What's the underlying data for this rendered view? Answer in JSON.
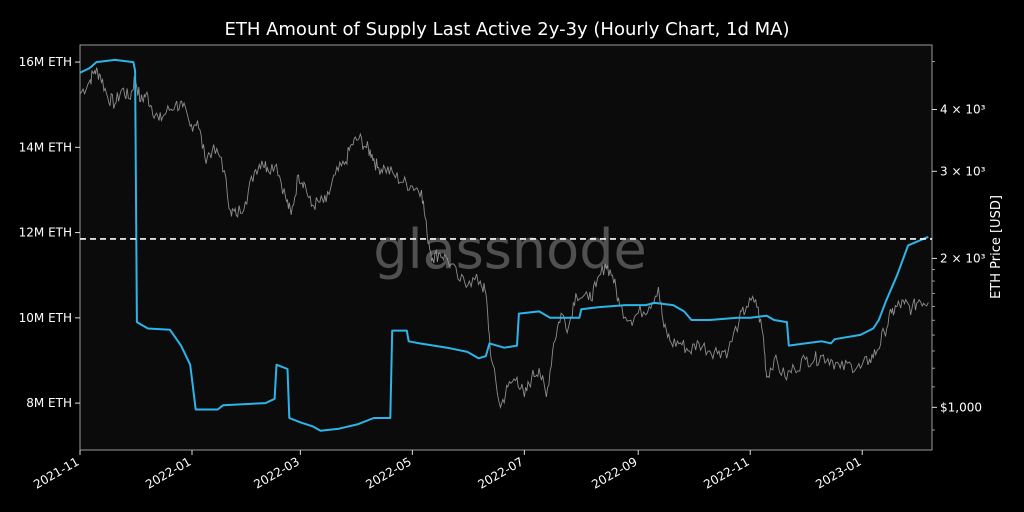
{
  "chart_data": {
    "type": "line",
    "title": "ETH Amount of Supply Last Active 2y-3y (Hourly Chart, 1d MA)",
    "watermark": "glassnode",
    "y2label": "ETH Price [USD]",
    "x_ticks": [
      "2021-11",
      "2022-01",
      "2022-03",
      "2022-05",
      "2022-07",
      "2022-09",
      "2022-11",
      "2023-01"
    ],
    "y_ticks": [
      "8M ETH",
      "10M ETH",
      "12M ETH",
      "14M ETH",
      "16M ETH"
    ],
    "y2_ticks": [
      "$1,000",
      "2 × 10³",
      "3 × 10³",
      "4 × 10³"
    ],
    "xlim": [
      "2021-11-01",
      "2023-02-08"
    ],
    "ylim": [
      6900000,
      16400000
    ],
    "y2lim": [
      820,
      5400
    ],
    "y2_scale": "log",
    "grid": false,
    "colors": {
      "background": "#000000",
      "supply": "#2db4e8",
      "price": "#9a9a9a",
      "reference": "#ffffff"
    },
    "reference_line": {
      "y": 11850000,
      "style": "dashed"
    },
    "series": [
      {
        "axis": "left",
        "color": "#2db4e8",
        "points": [
          [
            "2021-11-01",
            15750000
          ],
          [
            "2021-11-06",
            15850000
          ],
          [
            "2021-11-10",
            16000000
          ],
          [
            "2021-11-20",
            16050000
          ],
          [
            "2021-11-30",
            16000000
          ],
          [
            "2021-12-01",
            15800000
          ],
          [
            "2021-12-02",
            9900000
          ],
          [
            "2021-12-08",
            9750000
          ],
          [
            "2021-12-20",
            9720000
          ],
          [
            "2021-12-26",
            9350000
          ],
          [
            "2021-12-31",
            8900000
          ],
          [
            "2022-01-03",
            7850000
          ],
          [
            "2022-01-15",
            7850000
          ],
          [
            "2022-01-18",
            7950000
          ],
          [
            "2022-02-10",
            8000000
          ],
          [
            "2022-02-15",
            8100000
          ],
          [
            "2022-02-16",
            8900000
          ],
          [
            "2022-02-22",
            8800000
          ],
          [
            "2022-02-23",
            7650000
          ],
          [
            "2022-03-01",
            7550000
          ],
          [
            "2022-03-08",
            7450000
          ],
          [
            "2022-03-12",
            7350000
          ],
          [
            "2022-03-22",
            7400000
          ],
          [
            "2022-04-01",
            7500000
          ],
          [
            "2022-04-10",
            7650000
          ],
          [
            "2022-04-19",
            7650000
          ],
          [
            "2022-04-20",
            9700000
          ],
          [
            "2022-04-28",
            9700000
          ],
          [
            "2022-04-29",
            9450000
          ],
          [
            "2022-05-05",
            9400000
          ],
          [
            "2022-05-20",
            9300000
          ],
          [
            "2022-05-31",
            9200000
          ],
          [
            "2022-06-06",
            9050000
          ],
          [
            "2022-06-10",
            9100000
          ],
          [
            "2022-06-12",
            9400000
          ],
          [
            "2022-06-20",
            9300000
          ],
          [
            "2022-06-27",
            9350000
          ],
          [
            "2022-06-28",
            10100000
          ],
          [
            "2022-07-09",
            10150000
          ],
          [
            "2022-07-15",
            10000000
          ],
          [
            "2022-07-31",
            10000000
          ],
          [
            "2022-08-01",
            10200000
          ],
          [
            "2022-08-10",
            10250000
          ],
          [
            "2022-08-25",
            10300000
          ],
          [
            "2022-09-05",
            10300000
          ],
          [
            "2022-09-10",
            10350000
          ],
          [
            "2022-09-20",
            10300000
          ],
          [
            "2022-09-26",
            10150000
          ],
          [
            "2022-09-30",
            9950000
          ],
          [
            "2022-10-10",
            9950000
          ],
          [
            "2022-10-25",
            10000000
          ],
          [
            "2022-11-01",
            10000000
          ],
          [
            "2022-11-10",
            10050000
          ],
          [
            "2022-11-14",
            9950000
          ],
          [
            "2022-11-21",
            9900000
          ],
          [
            "2022-11-22",
            9350000
          ],
          [
            "2022-12-01",
            9400000
          ],
          [
            "2022-12-10",
            9450000
          ],
          [
            "2022-12-15",
            9400000
          ],
          [
            "2022-12-17",
            9500000
          ],
          [
            "2022-12-31",
            9600000
          ],
          [
            "2023-01-07",
            9750000
          ],
          [
            "2023-01-10",
            9950000
          ],
          [
            "2023-01-14",
            10400000
          ],
          [
            "2023-01-20",
            11000000
          ],
          [
            "2023-01-26",
            11700000
          ],
          [
            "2023-02-06",
            11900000
          ]
        ]
      },
      {
        "axis": "right",
        "color": "#9a9a9a",
        "points": [
          [
            "2021-11-01",
            4300
          ],
          [
            "2021-11-06",
            4550
          ],
          [
            "2021-11-09",
            4800
          ],
          [
            "2021-11-12",
            4700
          ],
          [
            "2021-11-16",
            4250
          ],
          [
            "2021-11-20",
            4100
          ],
          [
            "2021-11-24",
            4400
          ],
          [
            "2021-11-28",
            4200
          ],
          [
            "2021-12-01",
            4650
          ],
          [
            "2021-12-04",
            4150
          ],
          [
            "2021-12-07",
            4300
          ],
          [
            "2021-12-10",
            4050
          ],
          [
            "2021-12-14",
            3800
          ],
          [
            "2021-12-18",
            3950
          ],
          [
            "2021-12-23",
            4100
          ],
          [
            "2021-12-27",
            4050
          ],
          [
            "2021-12-31",
            3700
          ],
          [
            "2022-01-04",
            3800
          ],
          [
            "2022-01-08",
            3200
          ],
          [
            "2022-01-12",
            3300
          ],
          [
            "2022-01-17",
            3200
          ],
          [
            "2022-01-22",
            2500
          ],
          [
            "2022-01-25",
            2450
          ],
          [
            "2022-01-30",
            2600
          ],
          [
            "2022-02-04",
            3000
          ],
          [
            "2022-02-08",
            3150
          ],
          [
            "2022-02-11",
            3050
          ],
          [
            "2022-02-16",
            3100
          ],
          [
            "2022-02-21",
            2650
          ],
          [
            "2022-02-24",
            2450
          ],
          [
            "2022-02-28",
            2950
          ],
          [
            "2022-03-03",
            2850
          ],
          [
            "2022-03-07",
            2550
          ],
          [
            "2022-03-11",
            2600
          ],
          [
            "2022-03-15",
            2600
          ],
          [
            "2022-03-20",
            2950
          ],
          [
            "2022-03-25",
            3100
          ],
          [
            "2022-03-29",
            3400
          ],
          [
            "2022-04-02",
            3500
          ],
          [
            "2022-04-06",
            3350
          ],
          [
            "2022-04-09",
            3250
          ],
          [
            "2022-04-12",
            3050
          ],
          [
            "2022-04-16",
            3050
          ],
          [
            "2022-04-21",
            2950
          ],
          [
            "2022-04-26",
            2850
          ],
          [
            "2022-05-01",
            2800
          ],
          [
            "2022-05-06",
            2750
          ],
          [
            "2022-05-09",
            2250
          ],
          [
            "2022-05-12",
            2000
          ],
          [
            "2022-05-16",
            2050
          ],
          [
            "2022-05-20",
            2000
          ],
          [
            "2022-05-27",
            1800
          ],
          [
            "2022-06-01",
            1800
          ],
          [
            "2022-06-07",
            1800
          ],
          [
            "2022-06-10",
            1700
          ],
          [
            "2022-06-13",
            1250
          ],
          [
            "2022-06-18",
            1000
          ],
          [
            "2022-06-22",
            1100
          ],
          [
            "2022-06-27",
            1150
          ],
          [
            "2022-07-01",
            1050
          ],
          [
            "2022-07-05",
            1150
          ],
          [
            "2022-07-09",
            1200
          ],
          [
            "2022-07-13",
            1050
          ],
          [
            "2022-07-17",
            1350
          ],
          [
            "2022-07-21",
            1550
          ],
          [
            "2022-07-25",
            1450
          ],
          [
            "2022-07-29",
            1700
          ],
          [
            "2022-08-05",
            1650
          ],
          [
            "2022-08-09",
            1750
          ],
          [
            "2022-08-14",
            1950
          ],
          [
            "2022-08-18",
            1850
          ],
          [
            "2022-08-22",
            1600
          ],
          [
            "2022-08-28",
            1500
          ],
          [
            "2022-09-01",
            1550
          ],
          [
            "2022-09-07",
            1600
          ],
          [
            "2022-09-12",
            1750
          ],
          [
            "2022-09-15",
            1450
          ],
          [
            "2022-09-19",
            1350
          ],
          [
            "2022-09-24",
            1350
          ],
          [
            "2022-09-29",
            1300
          ],
          [
            "2022-10-04",
            1350
          ],
          [
            "2022-10-10",
            1300
          ],
          [
            "2022-10-15",
            1300
          ],
          [
            "2022-10-20",
            1300
          ],
          [
            "2022-10-26",
            1500
          ],
          [
            "2022-10-30",
            1600
          ],
          [
            "2022-11-04",
            1650
          ],
          [
            "2022-11-08",
            1400
          ],
          [
            "2022-11-10",
            1150
          ],
          [
            "2022-11-14",
            1250
          ],
          [
            "2022-11-20",
            1150
          ],
          [
            "2022-11-25",
            1200
          ],
          [
            "2022-12-01",
            1250
          ],
          [
            "2022-12-06",
            1250
          ],
          [
            "2022-12-10",
            1270
          ],
          [
            "2022-12-15",
            1250
          ],
          [
            "2022-12-20",
            1200
          ],
          [
            "2022-12-26",
            1220
          ],
          [
            "2022-12-31",
            1200
          ],
          [
            "2023-01-05",
            1250
          ],
          [
            "2023-01-09",
            1300
          ],
          [
            "2023-01-13",
            1420
          ],
          [
            "2023-01-17",
            1550
          ],
          [
            "2023-01-20",
            1600
          ],
          [
            "2023-01-24",
            1620
          ],
          [
            "2023-01-28",
            1580
          ],
          [
            "2023-02-01",
            1650
          ],
          [
            "2023-02-06",
            1630
          ]
        ]
      }
    ]
  }
}
